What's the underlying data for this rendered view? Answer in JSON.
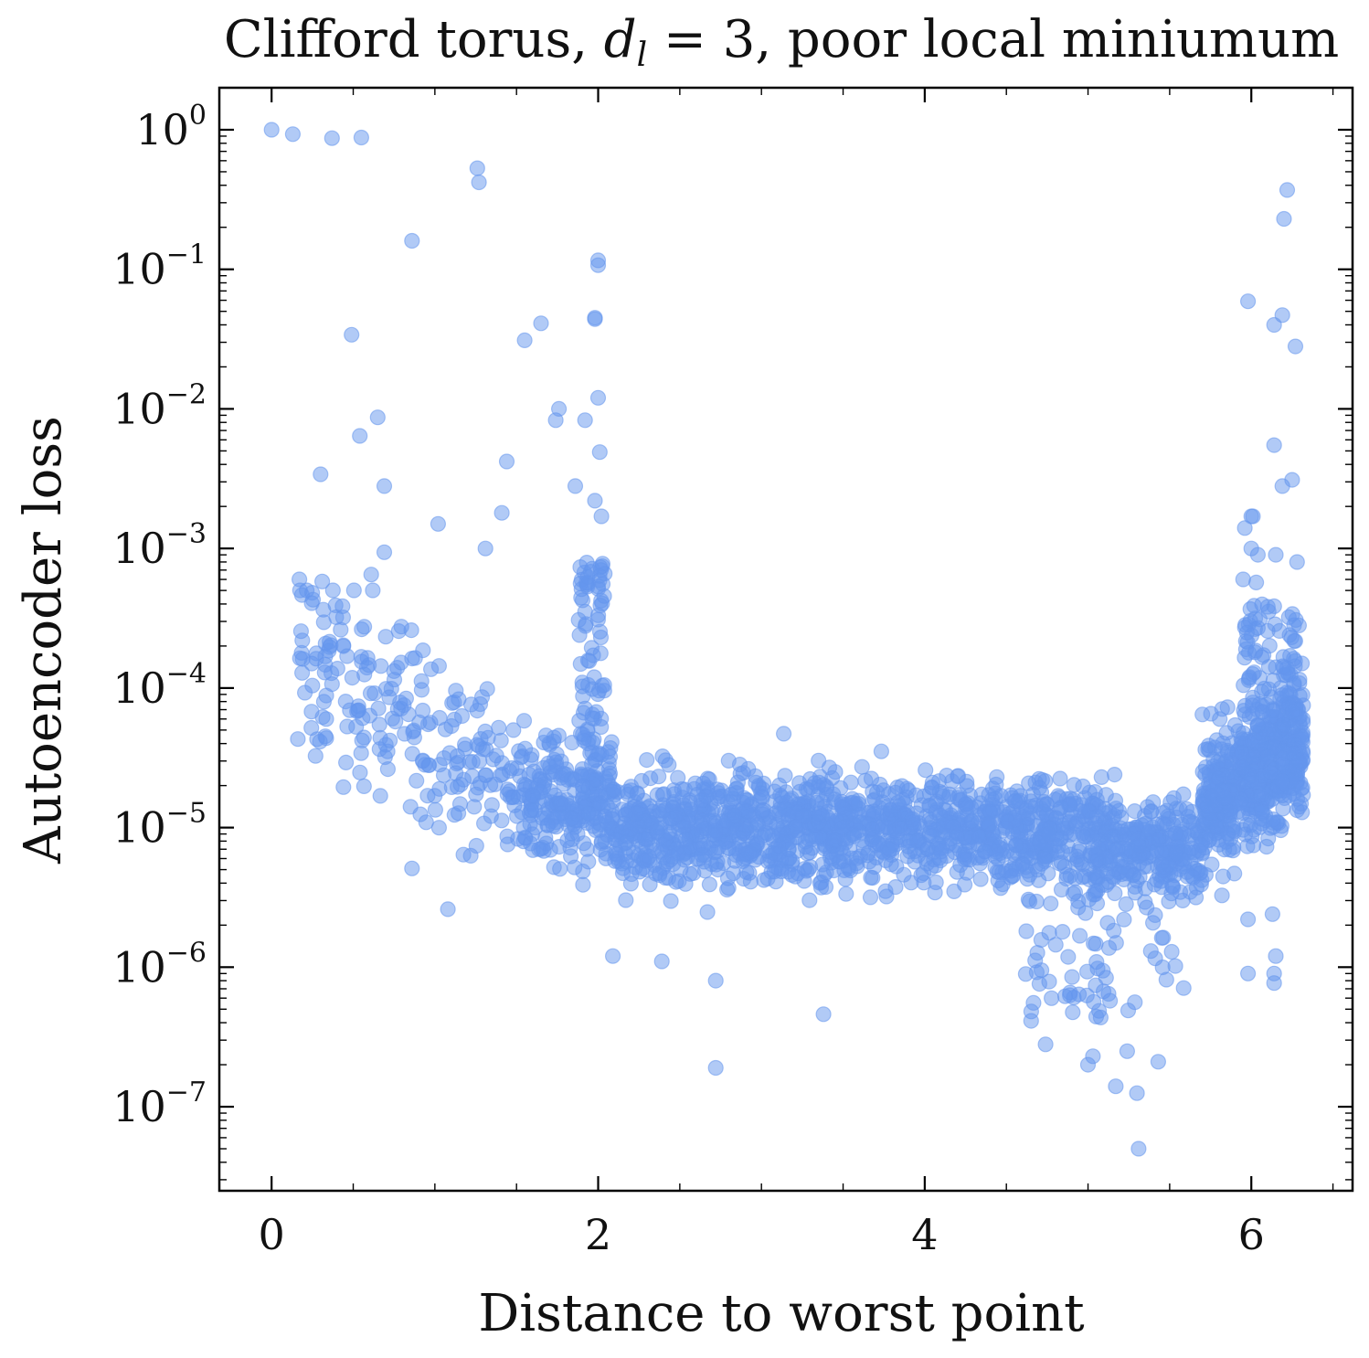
{
  "chart_data": {
    "type": "scatter",
    "title": "Clifford torus, d_l = 3, poor local miniumum",
    "title_parts": {
      "prefix": "Clifford torus, ",
      "var": "d",
      "sub": "l",
      "suffix": " = 3, poor local miniumum"
    },
    "xlabel": "Distance to worst point",
    "ylabel": "Autoencoder loss",
    "yscale": "log",
    "xlim": [
      -0.32,
      6.62
    ],
    "ylim": [
      2.5e-08,
      2.0
    ],
    "x_ticks": [
      {
        "value": 0,
        "label": "0"
      },
      {
        "value": 2,
        "label": "2"
      },
      {
        "value": 4,
        "label": "4"
      },
      {
        "value": 6,
        "label": "6"
      }
    ],
    "y_ticks": [
      {
        "value": 1,
        "base": "10",
        "exp": "0"
      },
      {
        "value": 0.1,
        "base": "10",
        "exp": "−1"
      },
      {
        "value": 0.01,
        "base": "10",
        "exp": "−2"
      },
      {
        "value": 0.001,
        "base": "10",
        "exp": "−3"
      },
      {
        "value": 0.0001,
        "base": "10",
        "exp": "−4"
      },
      {
        "value": 1e-05,
        "base": "10",
        "exp": "−5"
      },
      {
        "value": 1e-06,
        "base": "10",
        "exp": "−6"
      },
      {
        "value": 1e-07,
        "base": "10",
        "exp": "−7"
      }
    ],
    "grid": false,
    "color": "#6495ED",
    "outliers": [
      [
        0.0,
        1.0
      ],
      [
        0.13,
        0.93
      ],
      [
        0.37,
        0.87
      ],
      [
        0.55,
        0.88
      ],
      [
        1.26,
        0.53
      ],
      [
        1.27,
        0.42
      ],
      [
        0.86,
        0.16
      ],
      [
        2.0,
        0.116
      ],
      [
        2.0,
        0.107
      ],
      [
        1.98,
        0.045
      ],
      [
        1.98,
        0.044
      ],
      [
        1.65,
        0.041
      ],
      [
        1.55,
        0.031
      ],
      [
        0.49,
        0.034
      ],
      [
        2.0,
        0.012
      ],
      [
        1.76,
        0.01
      ],
      [
        1.74,
        0.0083
      ],
      [
        1.92,
        0.0083
      ],
      [
        0.65,
        0.0087
      ],
      [
        0.54,
        0.0064
      ],
      [
        2.01,
        0.0049
      ],
      [
        1.44,
        0.0042
      ],
      [
        0.3,
        0.0034
      ],
      [
        0.69,
        0.0028
      ],
      [
        1.86,
        0.0028
      ],
      [
        1.98,
        0.0022
      ],
      [
        2.02,
        0.0017
      ],
      [
        1.41,
        0.0018
      ],
      [
        1.02,
        0.0015
      ],
      [
        1.31,
        0.001
      ],
      [
        0.69,
        0.00094
      ],
      [
        0.17,
        0.0006
      ],
      [
        0.31,
        0.00058
      ],
      [
        0.61,
        0.00065
      ],
      [
        2.72,
        1.9e-07
      ],
      [
        3.38,
        4.6e-07
      ],
      [
        4.74,
        2.8e-07
      ],
      [
        5.31,
        5e-08
      ],
      [
        5.3,
        1.25e-07
      ],
      [
        5.17,
        1.4e-07
      ],
      [
        5.0,
        2e-07
      ],
      [
        5.03,
        2.3e-07
      ],
      [
        5.43,
        2.1e-07
      ],
      [
        5.24,
        2.5e-07
      ],
      [
        2.72,
        8e-07
      ],
      [
        2.39,
        1.1e-06
      ],
      [
        2.09,
        1.2e-06
      ],
      [
        1.08,
        2.6e-06
      ],
      [
        0.86,
        5.1e-06
      ],
      [
        0.44,
        1.95e-05
      ],
      [
        6.22,
        0.37
      ],
      [
        6.2,
        0.23
      ],
      [
        5.98,
        0.059
      ],
      [
        6.19,
        0.047
      ],
      [
        6.14,
        0.04
      ],
      [
        6.27,
        0.028
      ],
      [
        6.14,
        0.0055
      ],
      [
        6.25,
        0.0031
      ],
      [
        6.19,
        0.0028
      ],
      [
        6.0,
        0.0017
      ],
      [
        6.01,
        0.0017
      ],
      [
        5.96,
        0.0014
      ],
      [
        6.28,
        0.0008
      ],
      [
        6.15,
        0.0009
      ],
      [
        6.0,
        0.001
      ],
      [
        6.04,
        0.0009
      ],
      [
        5.95,
        0.0006
      ],
      [
        6.03,
        0.00057
      ],
      [
        5.98,
        9e-07
      ],
      [
        6.14,
        9e-07
      ],
      [
        6.14,
        7.7e-07
      ],
      [
        6.15,
        1.2e-06
      ],
      [
        6.13,
        2.4e-06
      ],
      [
        5.98,
        2.2e-06
      ]
    ]
  }
}
